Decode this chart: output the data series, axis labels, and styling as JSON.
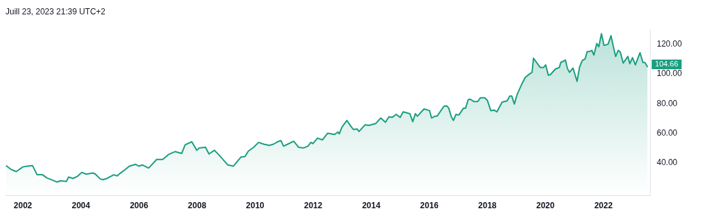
{
  "chart_data": {
    "type": "area",
    "annotations": [
      "Juill 23, 2023 21:39 UTC+2",
      {
        "text": "104.66",
        "x": 2023.52,
        "y": 104.66
      }
    ],
    "x": [
      2001.42,
      2001.58,
      2001.77,
      2002.0,
      2002.16,
      2002.33,
      2002.49,
      2002.68,
      2002.82,
      2003.03,
      2003.17,
      2003.29,
      2003.5,
      2003.57,
      2003.73,
      2003.87,
      2004.03,
      2004.18,
      2004.41,
      2004.5,
      2004.67,
      2004.76,
      2004.9,
      2005.13,
      2005.25,
      2005.34,
      2005.51,
      2005.67,
      2005.88,
      2006.0,
      2006.12,
      2006.33,
      2006.61,
      2006.82,
      2007.01,
      2007.24,
      2007.47,
      2007.59,
      2007.82,
      2007.99,
      2008.08,
      2008.29,
      2008.41,
      2008.6,
      2008.78,
      2009.06,
      2009.25,
      2009.51,
      2009.65,
      2009.77,
      2009.95,
      2010.12,
      2010.3,
      2010.49,
      2010.63,
      2010.77,
      2010.89,
      2010.98,
      2011.12,
      2011.33,
      2011.5,
      2011.68,
      2011.82,
      2011.92,
      2011.99,
      2012.15,
      2012.32,
      2012.5,
      2012.74,
      2012.85,
      2012.9,
      2012.99,
      2013.16,
      2013.32,
      2013.39,
      2013.51,
      2013.58,
      2013.79,
      2013.93,
      2014.16,
      2014.33,
      2014.49,
      2014.61,
      2014.72,
      2014.86,
      2015.0,
      2015.1,
      2015.33,
      2015.43,
      2015.52,
      2015.59,
      2015.82,
      2016.01,
      2016.08,
      2016.2,
      2016.27,
      2016.5,
      2016.6,
      2016.67,
      2016.76,
      2016.83,
      2016.92,
      2017.02,
      2017.18,
      2017.25,
      2017.34,
      2017.41,
      2017.53,
      2017.67,
      2017.76,
      2017.91,
      2018.0,
      2018.12,
      2018.23,
      2018.33,
      2018.51,
      2018.68,
      2018.77,
      2018.84,
      2018.93,
      2019.03,
      2019.19,
      2019.31,
      2019.45,
      2019.54,
      2019.59,
      2019.82,
      2019.94,
      2020.01,
      2020.1,
      2020.17,
      2020.34,
      2020.48,
      2020.53,
      2020.69,
      2020.76,
      2020.83,
      2020.95,
      2021.09,
      2021.18,
      2021.27,
      2021.37,
      2021.44,
      2021.53,
      2021.6,
      2021.67,
      2021.77,
      2021.84,
      2021.93,
      2022.02,
      2022.16,
      2022.26,
      2022.35,
      2022.42,
      2022.51,
      2022.58,
      2022.68,
      2022.84,
      2022.91,
      2023.0,
      2023.1,
      2023.26,
      2023.36,
      2023.43,
      2023.52
    ],
    "series": [
      {
        "color": "#1a9e80",
        "values": [
          38.3,
          35.8,
          34.2,
          37.4,
          37.9,
          38.3,
          32.1,
          32.1,
          30.0,
          28.4,
          27.2,
          28.0,
          27.6,
          30.5,
          29.6,
          30.9,
          33.7,
          32.5,
          33.3,
          32.5,
          29.2,
          28.8,
          29.6,
          32.1,
          31.3,
          32.9,
          35.4,
          37.9,
          39.1,
          37.9,
          38.7,
          36.6,
          42.4,
          42.4,
          45.7,
          47.7,
          46.5,
          52.3,
          54.3,
          48.6,
          50.2,
          50.6,
          46.1,
          48.6,
          44.9,
          38.7,
          37.9,
          44.0,
          44.4,
          48.1,
          50.6,
          53.9,
          52.7,
          51.9,
          52.7,
          54.3,
          55.1,
          51.4,
          52.7,
          54.7,
          50.6,
          50.2,
          51.4,
          53.9,
          53.1,
          56.8,
          55.6,
          60.1,
          59.3,
          60.9,
          59.7,
          64.2,
          68.7,
          64.2,
          62.6,
          63.0,
          61.3,
          65.8,
          65.4,
          66.7,
          70.4,
          67.5,
          71.2,
          70.8,
          72.8,
          70.8,
          74.5,
          73.3,
          67.9,
          73.3,
          71.6,
          76.5,
          75.3,
          70.4,
          71.6,
          71.6,
          78.2,
          78.6,
          77.0,
          71.2,
          68.7,
          72.8,
          72.4,
          77.0,
          77.0,
          82.7,
          83.1,
          81.5,
          81.5,
          84.0,
          84.0,
          82.3,
          75.3,
          75.7,
          74.5,
          81.1,
          81.9,
          85.2,
          85.2,
          79.8,
          86.4,
          93.4,
          97.9,
          100.0,
          101.2,
          110.7,
          104.5,
          104.5,
          106.2,
          99.2,
          99.6,
          103.3,
          104.5,
          107.8,
          109.5,
          103.7,
          101.2,
          104.1,
          95.1,
          104.9,
          109.1,
          110.3,
          115.2,
          115.2,
          116.0,
          112.8,
          120.6,
          118.5,
          127.2,
          119.3,
          120.2,
          125.9,
          117.7,
          111.9,
          116.0,
          114.8,
          107.4,
          111.9,
          107.0,
          111.1,
          106.2,
          114.4,
          107.8,
          107.8,
          104.66
        ]
      }
    ],
    "xlim": [
      2001.4,
      2023.6
    ],
    "xticks": [
      2002,
      2004,
      2006,
      2008,
      2010,
      2012,
      2014,
      2016,
      2018,
      2020,
      2022
    ],
    "ylim": [
      18,
      130
    ],
    "yticks": [
      {
        "value": 40,
        "label": "40.00"
      },
      {
        "value": 60,
        "label": "60.00"
      },
      {
        "value": 80,
        "label": "80.00"
      },
      {
        "value": 100,
        "label": "100.00"
      },
      {
        "value": 120,
        "label": "120.00"
      }
    ],
    "marker": "none",
    "line_style": "solid"
  }
}
